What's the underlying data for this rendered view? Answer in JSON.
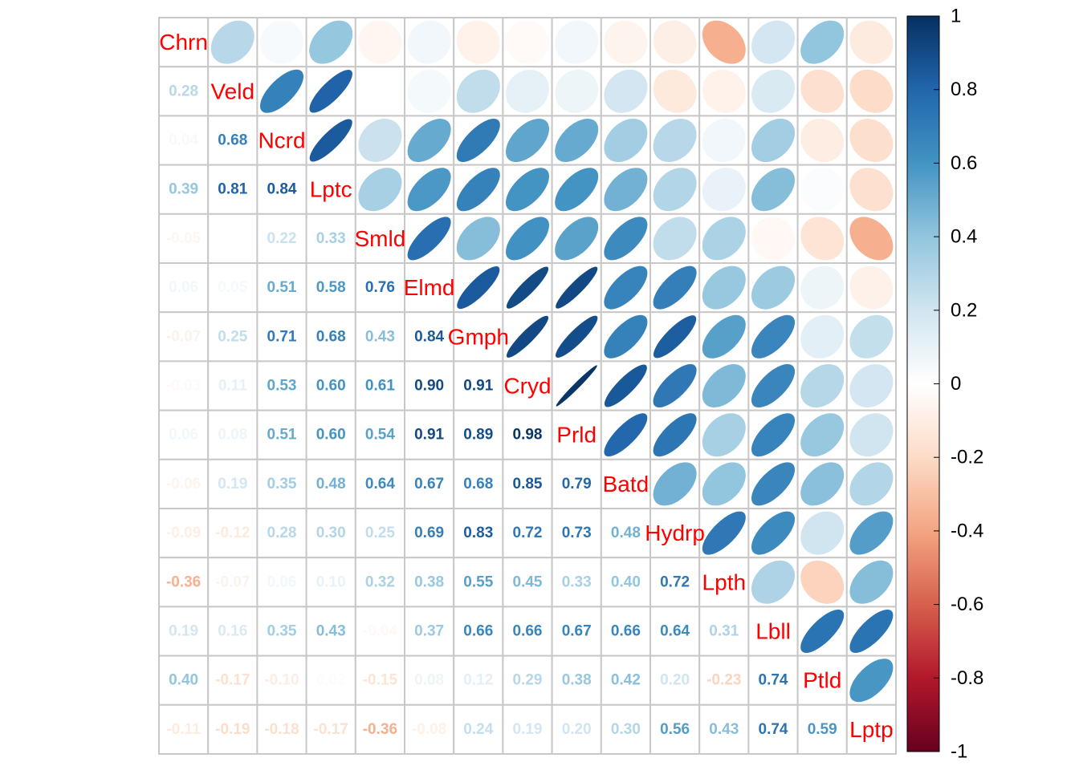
{
  "chart_data": {
    "type": "heatmap",
    "style": "correlation matrix: ellipses in upper triangle, numeric coefficients in lower triangle, variable names on diagonal",
    "variables": [
      "Chrn",
      "Veld",
      "Ncrd",
      "Lptc",
      "Smld",
      "Elmd",
      "Gmph",
      "Cryd",
      "Prld",
      "Batd",
      "Hydrp",
      "Lpth",
      "Lbll",
      "Ptld",
      "Lptp"
    ],
    "lower_values": [
      [],
      [
        0.28
      ],
      [
        0.04,
        0.68
      ],
      [
        0.39,
        0.81,
        0.84
      ],
      [
        -0.05,
        0.0,
        0.22,
        0.33
      ],
      [
        0.06,
        0.05,
        0.51,
        0.58,
        0.76
      ],
      [
        -0.07,
        0.25,
        0.71,
        0.68,
        0.43,
        0.84
      ],
      [
        -0.03,
        0.11,
        0.53,
        0.6,
        0.61,
        0.9,
        0.91
      ],
      [
        0.06,
        0.08,
        0.51,
        0.6,
        0.54,
        0.91,
        0.89,
        0.98
      ],
      [
        -0.06,
        0.19,
        0.35,
        0.48,
        0.64,
        0.67,
        0.68,
        0.85,
        0.79
      ],
      [
        -0.09,
        -0.12,
        0.28,
        0.3,
        0.25,
        0.69,
        0.83,
        0.72,
        0.73,
        0.48
      ],
      [
        -0.36,
        -0.07,
        0.06,
        0.1,
        0.32,
        0.38,
        0.55,
        0.45,
        0.33,
        0.4,
        0.72
      ],
      [
        0.19,
        0.16,
        0.35,
        0.43,
        -0.04,
        0.37,
        0.66,
        0.66,
        0.67,
        0.66,
        0.64,
        0.31
      ],
      [
        0.4,
        -0.17,
        -0.1,
        0.02,
        -0.15,
        0.08,
        0.12,
        0.29,
        0.38,
        0.42,
        0.2,
        -0.23,
        0.74
      ],
      [
        -0.11,
        -0.19,
        -0.18,
        -0.17,
        -0.36,
        -0.08,
        0.24,
        0.19,
        0.2,
        0.3,
        0.56,
        0.43,
        0.74,
        0.59
      ]
    ],
    "colorbar": {
      "ticks": [
        "1",
        "0.8",
        "0.6",
        "0.4",
        "0.2",
        "0",
        "-0.2",
        "-0.4",
        "-0.6",
        "-0.8",
        "-1"
      ],
      "range": [
        -1,
        1
      ],
      "palette": [
        "#67001F",
        "#B2182B",
        "#D6604D",
        "#F4A582",
        "#FDDBC7",
        "#FFFFFF",
        "#D1E5F0",
        "#92C5DE",
        "#4393C3",
        "#2166AC",
        "#053061"
      ]
    },
    "label_color": "#ff0000",
    "grid": true,
    "legend_position": "right"
  }
}
